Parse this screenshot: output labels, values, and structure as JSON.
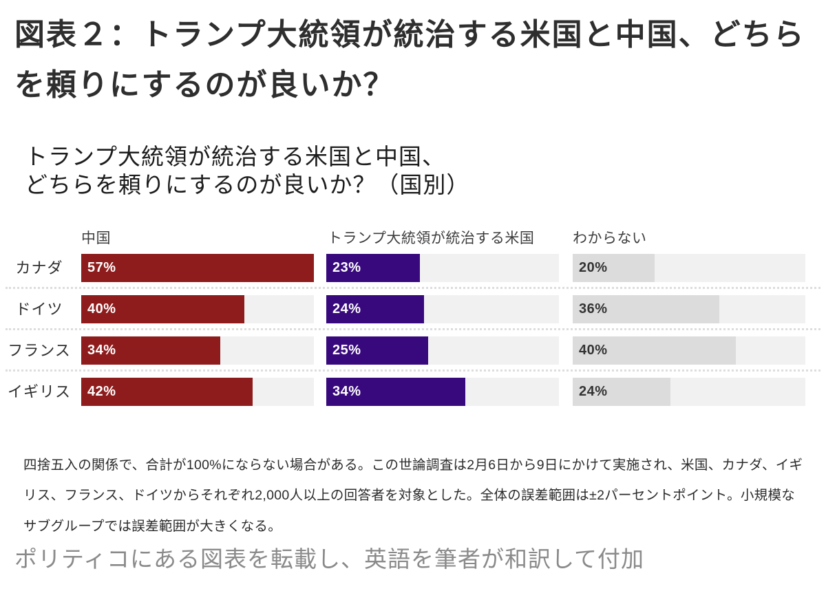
{
  "page": {
    "title": "図表２：トランプ大統領が統治する米国と中国、どちらを頼りにするのが良いか？",
    "caption": "ポリティコにある図表を転載し、英語を筆者が和訳して付加"
  },
  "chart_data": {
    "type": "bar",
    "orientation": "horizontal",
    "title": "トランプ大統領が統治する米国と中国、\nどちらを頼りにするのが良いか？（国別）",
    "categories": [
      "カナダ",
      "ドイツ",
      "フランス",
      "イギリス"
    ],
    "series": [
      {
        "name": "中国",
        "color": "#8e1c1c",
        "label_color": "#ffffff",
        "values": [
          57,
          40,
          34,
          42
        ]
      },
      {
        "name": "トランプ大統領が統治する米国",
        "color": "#38097d",
        "label_color": "#ffffff",
        "values": [
          23,
          24,
          25,
          34
        ]
      },
      {
        "name": "わからない",
        "color": "#dcdcdc",
        "label_color": "#333333",
        "values": [
          20,
          36,
          40,
          24
        ]
      }
    ],
    "value_suffix": "%",
    "scale_max": 57,
    "track_color": "#f1f1f1",
    "separator_color": "#dddddd",
    "grid": false,
    "legend_position": "column-headers",
    "note": "四捨五入の関係で、合計が100%にならない場合がある。この世論調査は2月6日から9日にかけて実施され、米国、カナダ、イギリス、フランス、ドイツからそれぞれ2,000人以上の回答者を対象とした。全体の誤差範囲は±2パーセントポイント。小規模なサブグループでは誤差範囲が大きくなる。"
  }
}
